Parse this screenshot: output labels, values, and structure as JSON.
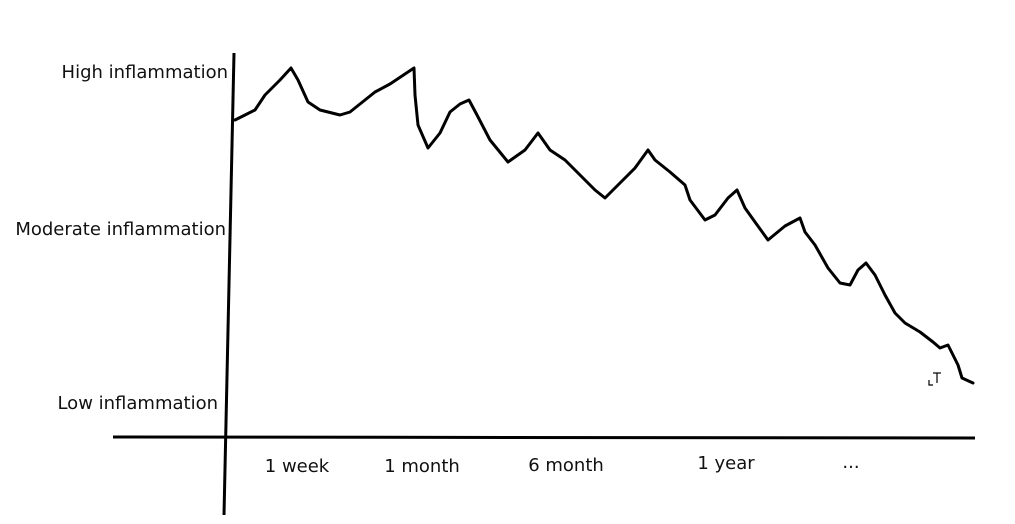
{
  "y_labels": [
    "High inflammation",
    "Moderate inflammation",
    "Low inflammation"
  ],
  "x_labels": [
    "1 week",
    "1 month",
    "6 month",
    "1 year",
    "..."
  ]
}
